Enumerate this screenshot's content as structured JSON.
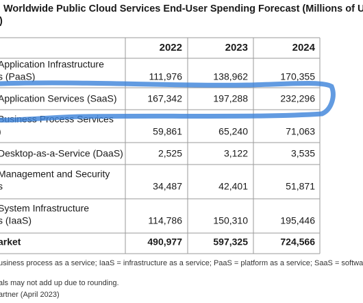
{
  "title": [
    "Worldwide Public Cloud Services End-User Spending Forecast (Millions of U.S.",
    ")"
  ],
  "table": {
    "header": [
      "2022",
      "2023",
      "2024"
    ],
    "rows": [
      {
        "label": [
          "Application Infrastructure",
          "s (PaaS)"
        ],
        "values": [
          "111,976",
          "138,962",
          "170,355"
        ]
      },
      {
        "label": [
          "Application Services (SaaS)"
        ],
        "values": [
          "167,342",
          "197,288",
          "232,296"
        ]
      },
      {
        "label": [
          "Business Process Services",
          ")"
        ],
        "values": [
          "59,861",
          "65,240",
          "71,063"
        ]
      },
      {
        "label": [
          "Desktop-as-a-Service (DaaS)"
        ],
        "values": [
          "2,525",
          "3,122",
          "3,535"
        ]
      },
      {
        "label": [
          "Management and Security",
          "s"
        ],
        "values": [
          "34,487",
          "42,401",
          "51,871"
        ]
      },
      {
        "label": [
          "System Infrastructure",
          "s (IaaS)"
        ],
        "values": [
          "114,786",
          "150,310",
          "195,446"
        ]
      },
      {
        "label": [
          "arket"
        ],
        "values": [
          "490,977",
          "597,325",
          "724,566"
        ]
      }
    ]
  },
  "notes": [
    "usiness process as a service; IaaS = infrastructure as a service; PaaS = platform as a service; SaaS = software",
    "als may not add up due to rounding.",
    "artner (April 2023)"
  ]
}
